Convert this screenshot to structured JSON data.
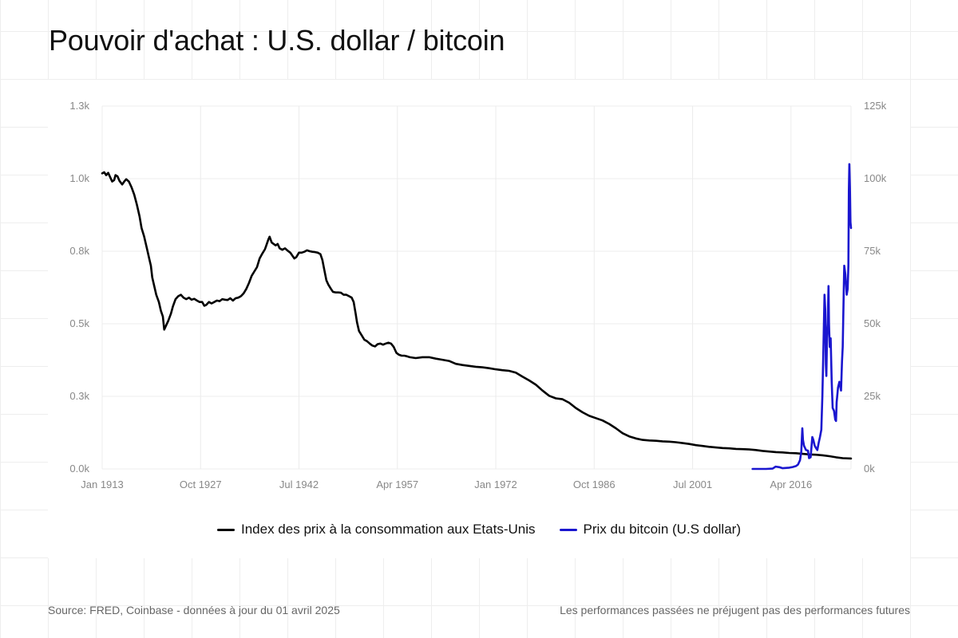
{
  "title": "Pouvoir d'achat : U.S. dollar / bitcoin",
  "footer": {
    "source": "Source: FRED, Coinbase - données à jour du 01 avril 2025",
    "disclaimer": "Les performances passées ne préjugent pas des performances futures"
  },
  "legend": {
    "cpi": "Index des prix à la consommation aux Etats-Unis",
    "btc": "Prix du bitcoin (U.S dollar)"
  },
  "colors": {
    "cpi": "#000000",
    "btc": "#1a16cf",
    "grid": "#ececec",
    "tick": "#888888"
  },
  "chart_data": {
    "type": "line",
    "title": "Pouvoir d'achat : U.S. dollar / bitcoin",
    "grid": true,
    "legend_position": "bottom-center",
    "x_axis": {
      "range": [
        1913.0,
        2025.25
      ],
      "tick_values": [
        1913.0,
        1927.75,
        1942.5,
        1957.25,
        1972.0,
        1986.75,
        2001.5,
        2016.25
      ],
      "tick_labels": [
        "Jan 1913",
        "Oct 1927",
        "Jul 1942",
        "Apr 1957",
        "Jan 1972",
        "Oct 1986",
        "Jul 2001",
        "Apr 2016"
      ]
    },
    "y_left": {
      "range": [
        0,
        1250
      ],
      "tick_values": [
        0,
        250,
        500,
        750,
        1000,
        1250
      ],
      "tick_labels": [
        "0.0k",
        "0.3k",
        "0.5k",
        "0.8k",
        "1.0k",
        "1.3k"
      ]
    },
    "y_right": {
      "range": [
        0,
        125000
      ],
      "tick_values": [
        0,
        25000,
        50000,
        75000,
        100000,
        125000
      ],
      "tick_labels": [
        "0k",
        "25k",
        "50k",
        "75k",
        "100k",
        "125k"
      ]
    },
    "series": [
      {
        "name": "Index des prix à la consommation aux Etats-Unis",
        "axis": "left",
        "points": [
          [
            1913.0,
            1018
          ],
          [
            1913.3,
            1022
          ],
          [
            1913.6,
            1012
          ],
          [
            1913.9,
            1020
          ],
          [
            1914.2,
            1005
          ],
          [
            1914.5,
            990
          ],
          [
            1914.8,
            995
          ],
          [
            1915.0,
            1012
          ],
          [
            1915.3,
            1008
          ],
          [
            1915.6,
            992
          ],
          [
            1916.0,
            980
          ],
          [
            1916.3,
            990
          ],
          [
            1916.6,
            998
          ],
          [
            1917.0,
            990
          ],
          [
            1917.4,
            970
          ],
          [
            1917.8,
            945
          ],
          [
            1918.2,
            910
          ],
          [
            1918.6,
            870
          ],
          [
            1918.9,
            830
          ],
          [
            1919.3,
            800
          ],
          [
            1919.7,
            760
          ],
          [
            1920.1,
            720
          ],
          [
            1920.3,
            700
          ],
          [
            1920.5,
            660
          ],
          [
            1920.8,
            630
          ],
          [
            1921.1,
            600
          ],
          [
            1921.5,
            575
          ],
          [
            1921.8,
            545
          ],
          [
            1922.1,
            525
          ],
          [
            1922.3,
            480
          ],
          [
            1922.6,
            495
          ],
          [
            1922.9,
            510
          ],
          [
            1923.3,
            535
          ],
          [
            1923.6,
            560
          ],
          [
            1924.0,
            585
          ],
          [
            1924.4,
            595
          ],
          [
            1924.8,
            600
          ],
          [
            1925.2,
            590
          ],
          [
            1925.6,
            585
          ],
          [
            1926.0,
            590
          ],
          [
            1926.4,
            583
          ],
          [
            1926.8,
            586
          ],
          [
            1927.2,
            580
          ],
          [
            1927.6,
            575
          ],
          [
            1928.0,
            575
          ],
          [
            1928.3,
            562
          ],
          [
            1928.6,
            565
          ],
          [
            1929.0,
            575
          ],
          [
            1929.4,
            570
          ],
          [
            1929.8,
            575
          ],
          [
            1930.2,
            580
          ],
          [
            1930.6,
            578
          ],
          [
            1931.0,
            585
          ],
          [
            1931.4,
            583
          ],
          [
            1931.8,
            582
          ],
          [
            1932.2,
            588
          ],
          [
            1932.6,
            580
          ],
          [
            1933.0,
            588
          ],
          [
            1933.4,
            590
          ],
          [
            1933.8,
            595
          ],
          [
            1934.2,
            605
          ],
          [
            1934.6,
            620
          ],
          [
            1935.0,
            640
          ],
          [
            1935.4,
            665
          ],
          [
            1935.8,
            680
          ],
          [
            1936.2,
            695
          ],
          [
            1936.6,
            725
          ],
          [
            1937.0,
            742
          ],
          [
            1937.4,
            757
          ],
          [
            1937.6,
            770
          ],
          [
            1937.9,
            790
          ],
          [
            1938.1,
            800
          ],
          [
            1938.4,
            780
          ],
          [
            1938.7,
            775
          ],
          [
            1939.0,
            770
          ],
          [
            1939.3,
            775
          ],
          [
            1939.6,
            760
          ],
          [
            1940.0,
            755
          ],
          [
            1940.4,
            760
          ],
          [
            1940.8,
            752
          ],
          [
            1941.2,
            745
          ],
          [
            1941.5,
            735
          ],
          [
            1941.8,
            725
          ],
          [
            1942.1,
            730
          ],
          [
            1942.5,
            745
          ],
          [
            1942.9,
            745
          ],
          [
            1943.3,
            748
          ],
          [
            1943.7,
            753
          ],
          [
            1944.1,
            750
          ],
          [
            1944.5,
            748
          ],
          [
            1944.9,
            747
          ],
          [
            1945.3,
            745
          ],
          [
            1945.7,
            740
          ],
          [
            1946.0,
            720
          ],
          [
            1946.3,
            685
          ],
          [
            1946.6,
            650
          ],
          [
            1946.9,
            635
          ],
          [
            1947.3,
            620
          ],
          [
            1947.6,
            610
          ],
          [
            1948.0,
            608
          ],
          [
            1948.4,
            608
          ],
          [
            1948.8,
            607
          ],
          [
            1949.2,
            600
          ],
          [
            1949.6,
            600
          ],
          [
            1950.0,
            595
          ],
          [
            1950.4,
            590
          ],
          [
            1950.7,
            575
          ],
          [
            1951.0,
            535
          ],
          [
            1951.2,
            505
          ],
          [
            1951.5,
            475
          ],
          [
            1951.9,
            460
          ],
          [
            1952.3,
            445
          ],
          [
            1952.7,
            440
          ],
          [
            1953.1,
            432
          ],
          [
            1953.5,
            425
          ],
          [
            1953.9,
            422
          ],
          [
            1954.3,
            430
          ],
          [
            1954.7,
            432
          ],
          [
            1955.1,
            428
          ],
          [
            1955.5,
            432
          ],
          [
            1955.9,
            435
          ],
          [
            1956.3,
            432
          ],
          [
            1956.7,
            420
          ],
          [
            1957.1,
            400
          ],
          [
            1957.5,
            393
          ],
          [
            1957.9,
            390
          ],
          [
            1958.3,
            390
          ],
          [
            1958.7,
            388
          ],
          [
            1959.1,
            385
          ],
          [
            1960.0,
            382
          ],
          [
            1961.0,
            385
          ],
          [
            1962.0,
            385
          ],
          [
            1963.0,
            380
          ],
          [
            1964.0,
            376
          ],
          [
            1965.0,
            372
          ],
          [
            1966.0,
            362
          ],
          [
            1967.0,
            358
          ],
          [
            1968.0,
            355
          ],
          [
            1969.0,
            352
          ],
          [
            1970.0,
            350
          ],
          [
            1971.0,
            347
          ],
          [
            1972.0,
            343
          ],
          [
            1973.0,
            340
          ],
          [
            1974.0,
            338
          ],
          [
            1975.0,
            332
          ],
          [
            1976.0,
            318
          ],
          [
            1977.0,
            305
          ],
          [
            1978.0,
            290
          ],
          [
            1979.0,
            270
          ],
          [
            1980.0,
            252
          ],
          [
            1981.0,
            243
          ],
          [
            1982.0,
            240
          ],
          [
            1983.0,
            228
          ],
          [
            1984.0,
            210
          ],
          [
            1985.0,
            195
          ],
          [
            1986.0,
            183
          ],
          [
            1987.0,
            175
          ],
          [
            1988.0,
            167
          ],
          [
            1989.0,
            155
          ],
          [
            1990.0,
            140
          ],
          [
            1991.0,
            123
          ],
          [
            1992.0,
            112
          ],
          [
            1993.0,
            105
          ],
          [
            1994.0,
            100
          ],
          [
            1995.0,
            98
          ],
          [
            1996.0,
            97
          ],
          [
            1997.0,
            95
          ],
          [
            1998.0,
            94
          ],
          [
            1999.0,
            92
          ],
          [
            2000.0,
            89
          ],
          [
            2001.0,
            86
          ],
          [
            2002.0,
            82
          ],
          [
            2003.0,
            79
          ],
          [
            2004.0,
            76
          ],
          [
            2005.0,
            74
          ],
          [
            2006.0,
            72
          ],
          [
            2007.0,
            71
          ],
          [
            2008.0,
            69
          ],
          [
            2009.0,
            68
          ],
          [
            2010.0,
            67
          ],
          [
            2011.0,
            65
          ],
          [
            2012.0,
            62
          ],
          [
            2013.0,
            60
          ],
          [
            2014.0,
            58
          ],
          [
            2015.0,
            57
          ],
          [
            2016.0,
            55
          ],
          [
            2017.0,
            54
          ],
          [
            2018.0,
            52
          ],
          [
            2019.0,
            50
          ],
          [
            2020.0,
            49
          ],
          [
            2021.0,
            47
          ],
          [
            2022.0,
            44
          ],
          [
            2023.0,
            40
          ],
          [
            2024.0,
            37
          ],
          [
            2025.25,
            36
          ]
        ]
      },
      {
        "name": "Prix du bitcoin (U.S dollar)",
        "axis": "right",
        "points": [
          [
            2010.5,
            0
          ],
          [
            2011.5,
            10
          ],
          [
            2012.5,
            12
          ],
          [
            2013.5,
            100
          ],
          [
            2013.95,
            800
          ],
          [
            2014.5,
            600
          ],
          [
            2015.0,
            250
          ],
          [
            2016.0,
            430
          ],
          [
            2016.5,
            650
          ],
          [
            2017.0,
            1000
          ],
          [
            2017.3,
            1500
          ],
          [
            2017.6,
            3000
          ],
          [
            2017.8,
            6000
          ],
          [
            2017.95,
            14000
          ],
          [
            2018.05,
            10000
          ],
          [
            2018.2,
            8000
          ],
          [
            2018.5,
            6500
          ],
          [
            2018.8,
            6300
          ],
          [
            2018.95,
            3700
          ],
          [
            2019.2,
            4000
          ],
          [
            2019.45,
            11000
          ],
          [
            2019.6,
            10000
          ],
          [
            2019.8,
            8000
          ],
          [
            2020.0,
            7200
          ],
          [
            2020.2,
            6500
          ],
          [
            2020.4,
            9000
          ],
          [
            2020.6,
            11000
          ],
          [
            2020.8,
            13500
          ],
          [
            2020.95,
            25000
          ],
          [
            2021.1,
            40000
          ],
          [
            2021.28,
            60000
          ],
          [
            2021.38,
            55000
          ],
          [
            2021.48,
            36000
          ],
          [
            2021.55,
            32000
          ],
          [
            2021.65,
            45000
          ],
          [
            2021.75,
            50000
          ],
          [
            2021.87,
            63000
          ],
          [
            2021.95,
            50000
          ],
          [
            2022.05,
            42000
          ],
          [
            2022.2,
            45000
          ],
          [
            2022.35,
            30000
          ],
          [
            2022.5,
            21000
          ],
          [
            2022.7,
            20000
          ],
          [
            2022.88,
            17000
          ],
          [
            2023.0,
            16500
          ],
          [
            2023.1,
            23000
          ],
          [
            2023.3,
            28000
          ],
          [
            2023.5,
            30000
          ],
          [
            2023.75,
            27000
          ],
          [
            2023.9,
            37000
          ],
          [
            2024.0,
            42000
          ],
          [
            2024.15,
            60000
          ],
          [
            2024.23,
            70000
          ],
          [
            2024.4,
            67000
          ],
          [
            2024.6,
            60000
          ],
          [
            2024.75,
            62000
          ],
          [
            2024.85,
            70000
          ],
          [
            2024.93,
            96000
          ],
          [
            2025.0,
            105000
          ],
          [
            2025.08,
            97000
          ],
          [
            2025.17,
            85000
          ],
          [
            2025.25,
            83000
          ]
        ]
      }
    ]
  }
}
